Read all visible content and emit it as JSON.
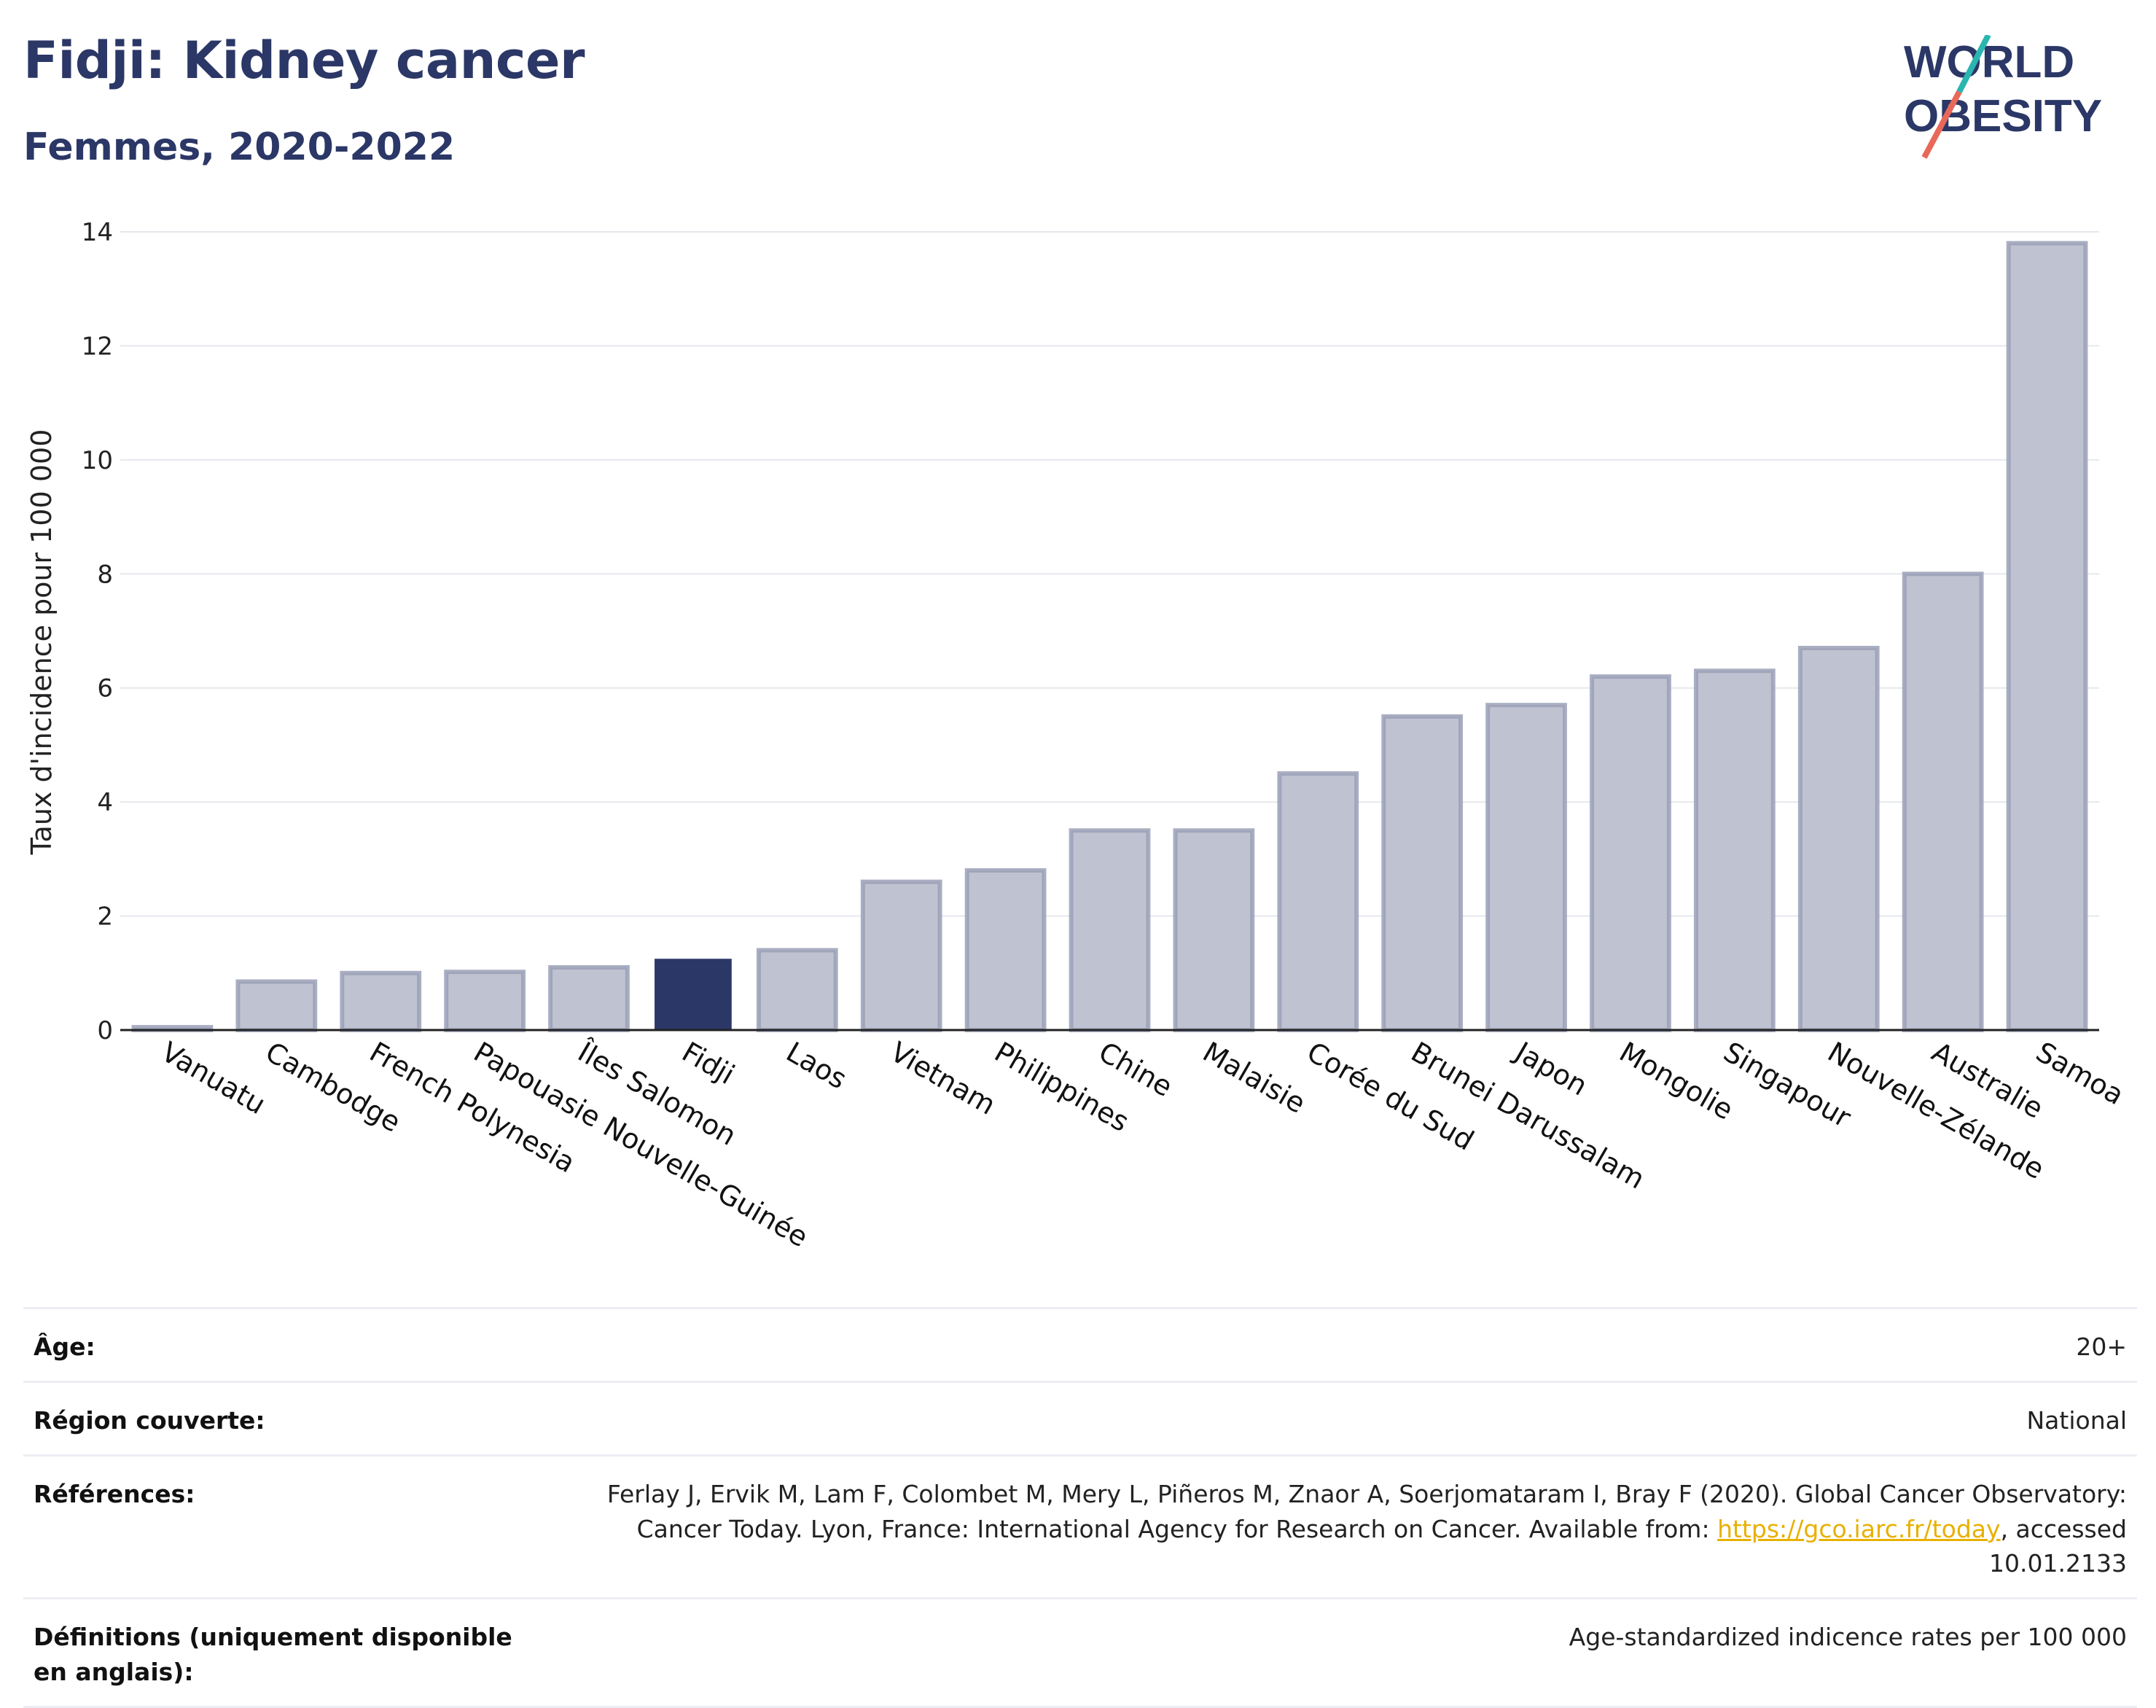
{
  "header": {
    "title": "Fidji: Kidney cancer",
    "subtitle": "Femmes, 2020-2022"
  },
  "logo": {
    "line1": "WORLD",
    "line2": "OBESITY",
    "colors": {
      "text": "#2b3766",
      "slash_top": "#2bb5b0",
      "slash_bottom": "#e8685a"
    }
  },
  "chart_data": {
    "type": "bar",
    "ylabel": "Taux d'incidence pour 100 000",
    "ylim": [
      0,
      14
    ],
    "yticks": [
      0,
      2,
      4,
      6,
      8,
      10,
      12,
      14
    ],
    "grid": true,
    "categories": [
      "Vanuatu",
      "Cambodge",
      "French Polynesia",
      "Papouasie Nouvelle-Guinée",
      "Îles Salomon",
      "Fidji",
      "Laos",
      "Vietnam",
      "Philippines",
      "Chine",
      "Malaisie",
      "Corée du Sud",
      "Brunei Darussalam",
      "Japon",
      "Mongolie",
      "Singapour",
      "Nouvelle-Zélande",
      "Australie",
      "Samoa"
    ],
    "values": [
      0.05,
      0.85,
      1.0,
      1.02,
      1.1,
      1.25,
      1.4,
      2.6,
      2.8,
      3.5,
      3.5,
      4.5,
      5.5,
      5.7,
      6.2,
      6.3,
      6.7,
      8.0,
      13.8
    ],
    "highlight": "Fidji",
    "colors": {
      "bar": "#bfc3d1",
      "bar_edge": "#9aa0b7",
      "highlight": "#2b3766"
    }
  },
  "meta": [
    {
      "key": "Âge:",
      "value": "20+"
    },
    {
      "key": "Région couverte:",
      "value": "National"
    },
    {
      "key": "Références:",
      "value": "Ferlay J, Ervik M, Lam F, Colombet M, Mery L, Piñeros M, Znaor A, Soerjomataram I, Bray F (2020). Global Cancer Observatory: Cancer Today. Lyon, France: International Agency for Research on Cancer. Available from: ",
      "link": "https://gco.iarc.fr/today",
      "value_after": ", accessed 10.01.2133"
    },
    {
      "key": "Définitions (uniquement disponible en anglais):",
      "value": "Age-standardized indicence rates per 100 000"
    }
  ]
}
